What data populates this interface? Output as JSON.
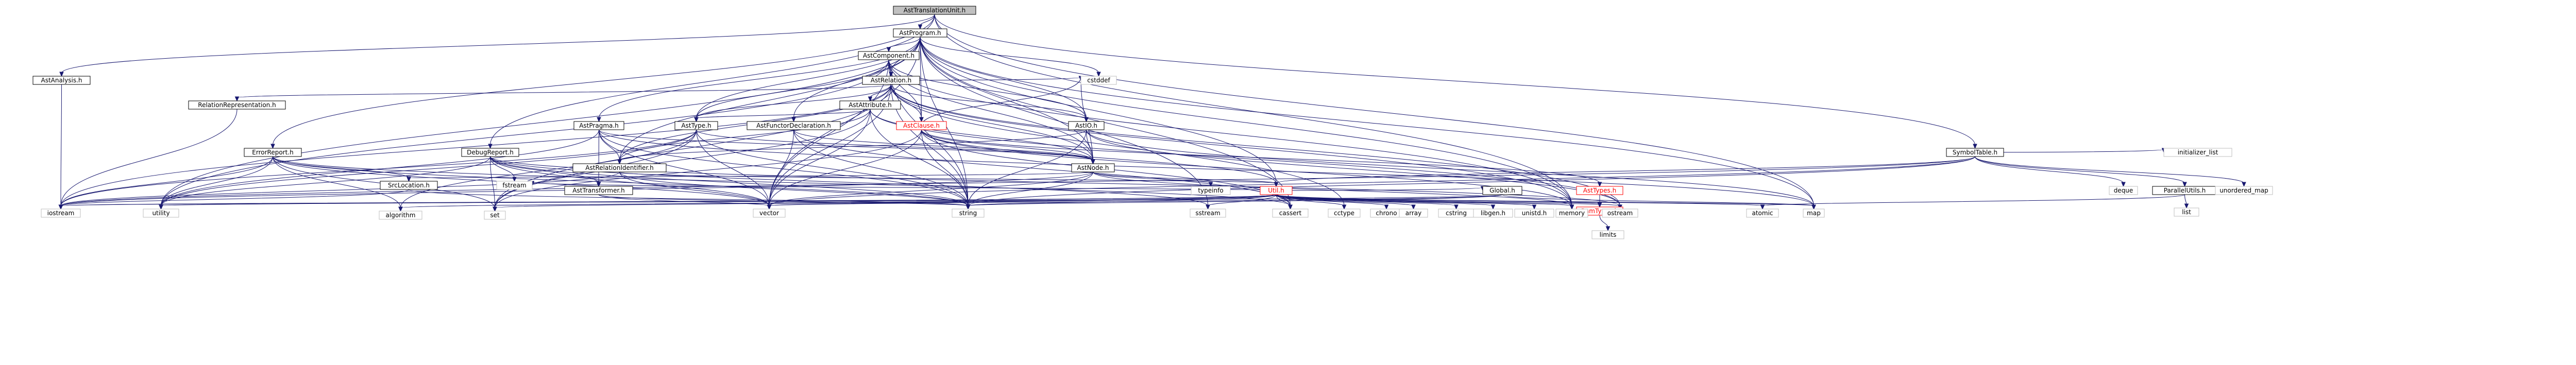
{
  "root_file": "AstTranslationUnit.h",
  "nodes": [
    {
      "id": "AstTranslationUnit.h",
      "label": "AstTranslationUnit.h",
      "kind": "root"
    },
    {
      "id": "AstProgram.h",
      "label": "AstProgram.h",
      "kind": "doc"
    },
    {
      "id": "AstAnalysis.h",
      "label": "AstAnalysis.h",
      "kind": "doc"
    },
    {
      "id": "SymbolTable.h",
      "label": "SymbolTable.h",
      "kind": "doc"
    },
    {
      "id": "AstComponent.h",
      "label": "AstComponent.h",
      "kind": "doc"
    },
    {
      "id": "cstddef",
      "label": "cstddef",
      "kind": "sys"
    },
    {
      "id": "AstRelation.h",
      "label": "AstRelation.h",
      "kind": "doc"
    },
    {
      "id": "RelationRepresentation.h",
      "label": "RelationRepresentation.h",
      "kind": "doc"
    },
    {
      "id": "AstAttribute.h",
      "label": "AstAttribute.h",
      "kind": "doc"
    },
    {
      "id": "AstType.h",
      "label": "AstType.h",
      "kind": "doc"
    },
    {
      "id": "AstPragma.h",
      "label": "AstPragma.h",
      "kind": "doc"
    },
    {
      "id": "AstFunctorDeclaration.h",
      "label": "AstFunctorDeclaration.h",
      "kind": "doc"
    },
    {
      "id": "AstClause.h",
      "label": "AstClause.h",
      "kind": "red"
    },
    {
      "id": "AstIO.h",
      "label": "AstIO.h",
      "kind": "doc"
    },
    {
      "id": "ErrorReport.h",
      "label": "ErrorReport.h",
      "kind": "doc"
    },
    {
      "id": "DebugReport.h",
      "label": "DebugReport.h",
      "kind": "doc"
    },
    {
      "id": "AstRelationIdentifier.h",
      "label": "AstRelationIdentifier.h",
      "kind": "doc"
    },
    {
      "id": "AstNode.h",
      "label": "AstNode.h",
      "kind": "doc"
    },
    {
      "id": "SrcLocation.h",
      "label": "SrcLocation.h",
      "kind": "doc"
    },
    {
      "id": "fstream",
      "label": "fstream",
      "kind": "sys"
    },
    {
      "id": "AstTransformer.h",
      "label": "AstTransformer.h",
      "kind": "doc"
    },
    {
      "id": "typeinfo",
      "label": "typeinfo",
      "kind": "sys"
    },
    {
      "id": "Util.h",
      "label": "Util.h",
      "kind": "red"
    },
    {
      "id": "Global.h",
      "label": "Global.h",
      "kind": "doc"
    },
    {
      "id": "AstTypes.h",
      "label": "AstTypes.h",
      "kind": "red"
    },
    {
      "id": "ParallelUtils.h",
      "label": "ParallelUtils.h",
      "kind": "doc"
    },
    {
      "id": "deque",
      "label": "deque",
      "kind": "sys"
    },
    {
      "id": "initializer_list",
      "label": "initializer_list",
      "kind": "sys"
    },
    {
      "id": "unordered_map",
      "label": "unordered_map",
      "kind": "sys"
    },
    {
      "id": "list",
      "label": "list",
      "kind": "sys"
    },
    {
      "id": "RamTypes.h",
      "label": "RamTypes.h",
      "kind": "red"
    },
    {
      "id": "limits",
      "label": "limits",
      "kind": "sys"
    },
    {
      "id": "iostream",
      "label": "iostream",
      "kind": "sys"
    },
    {
      "id": "utility",
      "label": "utility",
      "kind": "sys"
    },
    {
      "id": "algorithm",
      "label": "algorithm",
      "kind": "sys"
    },
    {
      "id": "set",
      "label": "set",
      "kind": "sys"
    },
    {
      "id": "vector",
      "label": "vector",
      "kind": "sys"
    },
    {
      "id": "string",
      "label": "string",
      "kind": "sys"
    },
    {
      "id": "sstream",
      "label": "sstream",
      "kind": "sys"
    },
    {
      "id": "cassert",
      "label": "cassert",
      "kind": "sys"
    },
    {
      "id": "cctype",
      "label": "cctype",
      "kind": "sys"
    },
    {
      "id": "chrono",
      "label": "chrono",
      "kind": "sys"
    },
    {
      "id": "array",
      "label": "array",
      "kind": "sys"
    },
    {
      "id": "cstring",
      "label": "cstring",
      "kind": "sys"
    },
    {
      "id": "libgen.h",
      "label": "libgen.h",
      "kind": "sys"
    },
    {
      "id": "unistd.h",
      "label": "unistd.h",
      "kind": "sys"
    },
    {
      "id": "memory",
      "label": "memory",
      "kind": "sys"
    },
    {
      "id": "ostream",
      "label": "ostream",
      "kind": "sys"
    },
    {
      "id": "atomic",
      "label": "atomic",
      "kind": "sys"
    },
    {
      "id": "map",
      "label": "map",
      "kind": "sys"
    }
  ],
  "edges": [
    [
      "AstTranslationUnit.h",
      "AstProgram.h"
    ],
    [
      "AstTranslationUnit.h",
      "AstAnalysis.h"
    ],
    [
      "AstTranslationUnit.h",
      "ErrorReport.h"
    ],
    [
      "AstTranslationUnit.h",
      "DebugReport.h"
    ],
    [
      "AstTranslationUnit.h",
      "SymbolTable.h"
    ],
    [
      "AstTranslationUnit.h",
      "map"
    ],
    [
      "AstTranslationUnit.h",
      "memory"
    ],
    [
      "AstProgram.h",
      "AstComponent.h"
    ],
    [
      "AstProgram.h",
      "AstRelation.h"
    ],
    [
      "AstProgram.h",
      "AstType.h"
    ],
    [
      "AstProgram.h",
      "AstPragma.h"
    ],
    [
      "AstProgram.h",
      "AstFunctorDeclaration.h"
    ],
    [
      "AstProgram.h",
      "AstClause.h"
    ],
    [
      "AstProgram.h",
      "AstIO.h"
    ],
    [
      "AstProgram.h",
      "AstNode.h"
    ],
    [
      "AstProgram.h",
      "AstRelationIdentifier.h"
    ],
    [
      "AstProgram.h",
      "Util.h"
    ],
    [
      "AstProgram.h",
      "sstream"
    ],
    [
      "AstProgram.h",
      "cstddef"
    ],
    [
      "AstProgram.h",
      "utility"
    ],
    [
      "AstProgram.h",
      "map"
    ],
    [
      "AstProgram.h",
      "memory"
    ],
    [
      "AstProgram.h",
      "string"
    ],
    [
      "AstProgram.h",
      "vector"
    ],
    [
      "AstProgram.h",
      "cassert"
    ],
    [
      "AstAnalysis.h",
      "iostream"
    ],
    [
      "AstComponent.h",
      "AstRelation.h"
    ],
    [
      "AstComponent.h",
      "AstType.h"
    ],
    [
      "AstComponent.h",
      "AstClause.h"
    ],
    [
      "AstComponent.h",
      "AstIO.h"
    ],
    [
      "AstComponent.h",
      "AstNode.h"
    ],
    [
      "AstComponent.h",
      "memory"
    ],
    [
      "AstComponent.h",
      "string"
    ],
    [
      "AstComponent.h",
      "utility"
    ],
    [
      "AstComponent.h",
      "vector"
    ],
    [
      "AstRelation.h",
      "RelationRepresentation.h"
    ],
    [
      "AstRelation.h",
      "AstAttribute.h"
    ],
    [
      "AstRelation.h",
      "AstType.h"
    ],
    [
      "AstRelation.h",
      "AstClause.h"
    ],
    [
      "AstRelation.h",
      "AstIO.h"
    ],
    [
      "AstRelation.h",
      "AstNode.h"
    ],
    [
      "AstRelation.h",
      "AstRelationIdentifier.h"
    ],
    [
      "AstRelation.h",
      "set"
    ],
    [
      "AstRelation.h",
      "string"
    ],
    [
      "AstRelation.h",
      "vector"
    ],
    [
      "AstRelation.h",
      "memory"
    ],
    [
      "AstRelation.h",
      "cctype"
    ],
    [
      "AstRelation.h",
      "cstddef"
    ],
    [
      "AstRelation.h",
      "iostream"
    ],
    [
      "AstRelation.h",
      "ostream"
    ],
    [
      "RelationRepresentation.h",
      "iostream"
    ],
    [
      "AstAttribute.h",
      "AstType.h"
    ],
    [
      "AstAttribute.h",
      "AstNode.h"
    ],
    [
      "AstAttribute.h",
      "AstRelationIdentifier.h"
    ],
    [
      "AstAttribute.h",
      "string"
    ],
    [
      "AstAttribute.h",
      "vector"
    ],
    [
      "AstAttribute.h",
      "set"
    ],
    [
      "AstAttribute.h",
      "ostream"
    ],
    [
      "AstType.h",
      "AstNode.h"
    ],
    [
      "AstType.h",
      "set"
    ],
    [
      "AstType.h",
      "string"
    ],
    [
      "AstType.h",
      "vector"
    ],
    [
      "AstType.h",
      "utility"
    ],
    [
      "AstType.h",
      "iostream"
    ],
    [
      "AstType.h",
      "algorithm"
    ],
    [
      "AstPragma.h",
      "AstNode.h"
    ],
    [
      "AstPragma.h",
      "AstRelationIdentifier.h"
    ],
    [
      "AstPragma.h",
      "AstTransformer.h"
    ],
    [
      "AstPragma.h",
      "string"
    ],
    [
      "AstPragma.h",
      "vector"
    ],
    [
      "AstPragma.h",
      "utility"
    ],
    [
      "AstPragma.h",
      "map"
    ],
    [
      "AstFunctorDeclaration.h",
      "AstNode.h"
    ],
    [
      "AstFunctorDeclaration.h",
      "string"
    ],
    [
      "AstFunctorDeclaration.h",
      "vector"
    ],
    [
      "AstFunctorDeclaration.h",
      "cassert"
    ],
    [
      "AstClause.h",
      "AstNode.h"
    ],
    [
      "AstClause.h",
      "AstTypes.h"
    ],
    [
      "AstClause.h",
      "Util.h"
    ],
    [
      "AstClause.h",
      "cstddef"
    ],
    [
      "AstClause.h",
      "memory"
    ],
    [
      "AstClause.h",
      "vector"
    ],
    [
      "AstClause.h",
      "string"
    ],
    [
      "AstClause.h",
      "set"
    ],
    [
      "AstClause.h",
      "cassert"
    ],
    [
      "AstIO.h",
      "AstNode.h"
    ],
    [
      "AstIO.h",
      "AstRelationIdentifier.h"
    ],
    [
      "AstIO.h",
      "map"
    ],
    [
      "AstIO.h",
      "string"
    ],
    [
      "AstIO.h",
      "ostream"
    ],
    [
      "ErrorReport.h",
      "SrcLocation.h"
    ],
    [
      "ErrorReport.h",
      "algorithm"
    ],
    [
      "ErrorReport.h",
      "iostream"
    ],
    [
      "ErrorReport.h",
      "set"
    ],
    [
      "ErrorReport.h",
      "string"
    ],
    [
      "ErrorReport.h",
      "utility"
    ],
    [
      "ErrorReport.h",
      "vector"
    ],
    [
      "ErrorReport.h",
      "cassert"
    ],
    [
      "DebugReport.h",
      "AstTransformer.h"
    ],
    [
      "DebugReport.h",
      "fstream"
    ],
    [
      "DebugReport.h",
      "sstream"
    ],
    [
      "DebugReport.h",
      "string"
    ],
    [
      "DebugReport.h",
      "vector"
    ],
    [
      "DebugReport.h",
      "set"
    ],
    [
      "DebugReport.h",
      "utility"
    ],
    [
      "DebugReport.h",
      "ostream"
    ],
    [
      "AstRelationIdentifier.h",
      "Util.h"
    ],
    [
      "AstRelationIdentifier.h",
      "string"
    ],
    [
      "AstRelationIdentifier.h",
      "vector"
    ],
    [
      "AstRelationIdentifier.h",
      "iostream"
    ],
    [
      "AstNode.h",
      "SrcLocation.h"
    ],
    [
      "AstNode.h",
      "Util.h"
    ],
    [
      "AstNode.h",
      "typeinfo"
    ],
    [
      "AstNode.h",
      "cstddef"
    ],
    [
      "AstNode.h",
      "memory"
    ],
    [
      "AstNode.h",
      "vector"
    ],
    [
      "AstNode.h",
      "string"
    ],
    [
      "AstNode.h",
      "iostream"
    ],
    [
      "SrcLocation.h",
      "string"
    ],
    [
      "SrcLocation.h",
      "iostream"
    ],
    [
      "AstTransformer.h",
      "string"
    ],
    [
      "AstTransformer.h",
      "vector"
    ],
    [
      "Util.h",
      "Global.h"
    ],
    [
      "Util.h",
      "RamTypes.h"
    ],
    [
      "Util.h",
      "algorithm"
    ],
    [
      "Util.h",
      "array"
    ],
    [
      "Util.h",
      "atomic"
    ],
    [
      "Util.h",
      "cassert"
    ],
    [
      "Util.h",
      "cctype"
    ],
    [
      "Util.h",
      "chrono"
    ],
    [
      "Util.h",
      "cstring"
    ],
    [
      "Util.h",
      "fstream"
    ],
    [
      "Util.h",
      "iostream"
    ],
    [
      "Util.h",
      "map"
    ],
    [
      "Util.h",
      "memory"
    ],
    [
      "Util.h",
      "ostream"
    ],
    [
      "Util.h",
      "set"
    ],
    [
      "Util.h",
      "sstream"
    ],
    [
      "Util.h",
      "string"
    ],
    [
      "Util.h",
      "utility"
    ],
    [
      "Util.h",
      "vector"
    ],
    [
      "Util.h",
      "libgen.h"
    ],
    [
      "Util.h",
      "unistd.h"
    ],
    [
      "Global.h",
      "string"
    ],
    [
      "Global.h",
      "iostream"
    ],
    [
      "Global.h",
      "map"
    ],
    [
      "Global.h",
      "vector"
    ],
    [
      "AstTypes.h",
      "RamTypes.h"
    ],
    [
      "RamTypes.h",
      "limits"
    ],
    [
      "SymbolTable.h",
      "ParallelUtils.h"
    ],
    [
      "SymbolTable.h",
      "Util.h"
    ],
    [
      "SymbolTable.h",
      "deque"
    ],
    [
      "SymbolTable.h",
      "initializer_list"
    ],
    [
      "SymbolTable.h",
      "unordered_map"
    ],
    [
      "SymbolTable.h",
      "iostream"
    ],
    [
      "SymbolTable.h",
      "string"
    ],
    [
      "SymbolTable.h",
      "vector"
    ],
    [
      "ParallelUtils.h",
      "atomic"
    ],
    [
      "ParallelUtils.h",
      "list"
    ]
  ]
}
